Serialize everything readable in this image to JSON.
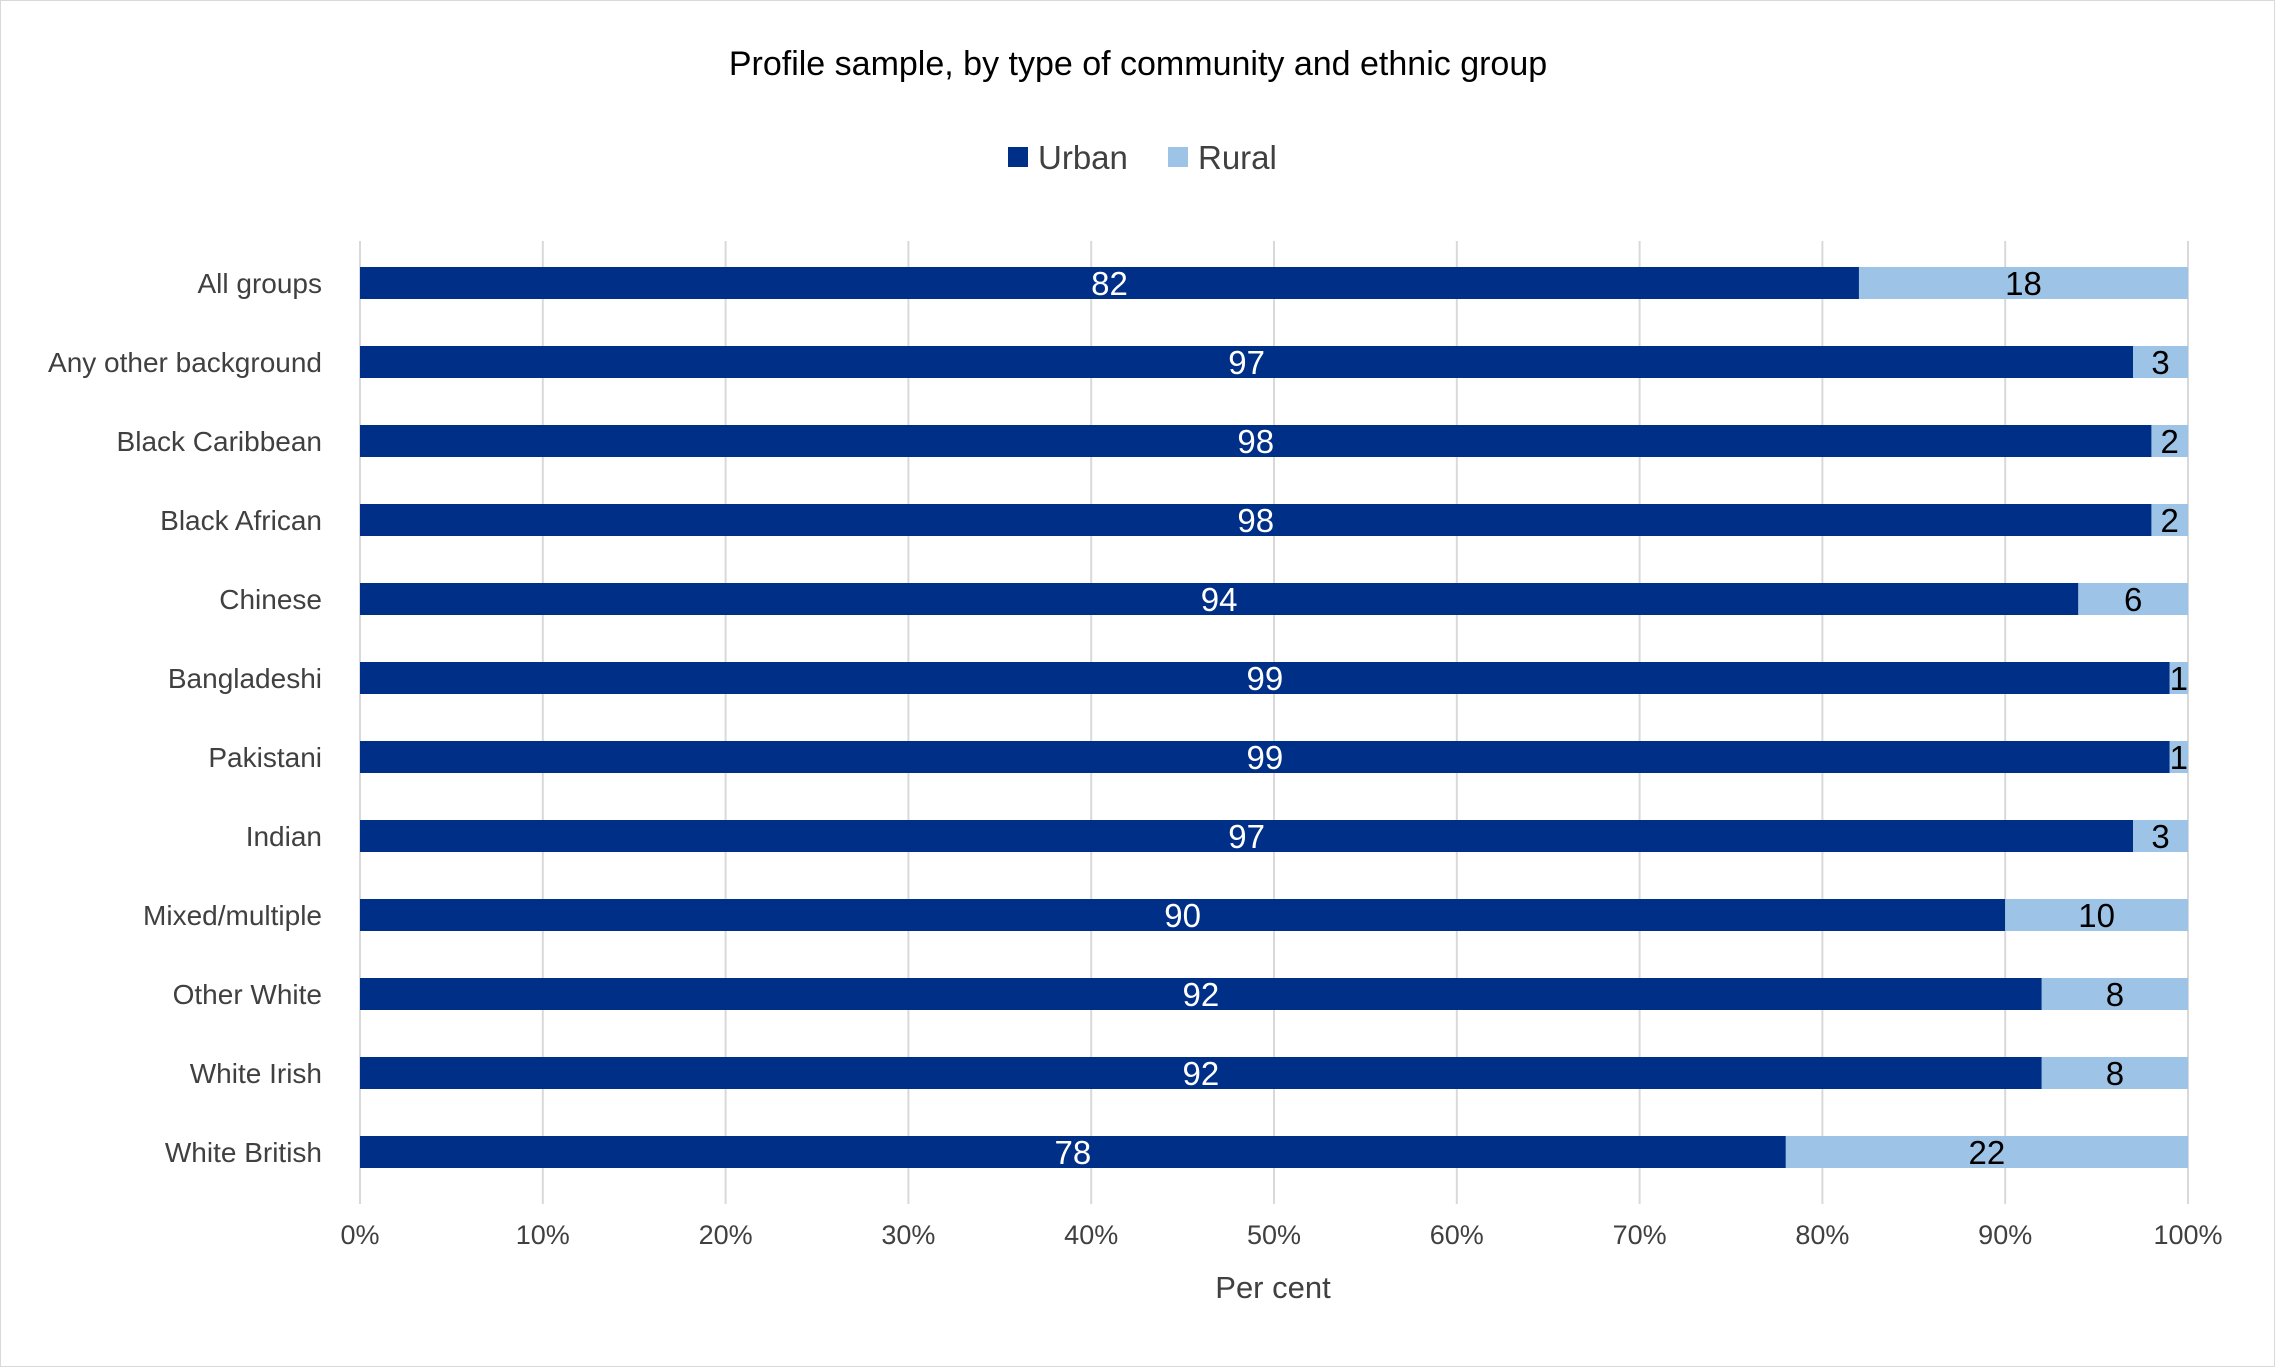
{
  "chart_data": {
    "type": "bar",
    "orientation": "horizontal",
    "stacked": "percent",
    "title": "Profile sample, by type of community and ethnic group",
    "xlabel": "Per cent",
    "ylabel": "",
    "xlim": [
      0,
      100
    ],
    "x_ticks": [
      "0%",
      "10%",
      "20%",
      "30%",
      "40%",
      "50%",
      "60%",
      "70%",
      "80%",
      "90%",
      "100%"
    ],
    "grid": true,
    "legend_position": "top",
    "categories": [
      "All groups",
      "Any other background",
      "Black Caribbean",
      "Black African",
      "Chinese",
      "Bangladeshi",
      "Pakistani",
      "Indian",
      "Mixed/multiple",
      "Other White",
      "White Irish",
      "White British"
    ],
    "series": [
      {
        "name": "Urban",
        "color": "#002f87",
        "label_color": "#ffffff",
        "values": [
          82,
          97,
          98,
          98,
          94,
          99,
          99,
          97,
          90,
          92,
          92,
          78
        ]
      },
      {
        "name": "Rural",
        "color": "#9dc3e6",
        "label_color": "#000000",
        "values": [
          18,
          3,
          2,
          2,
          6,
          1,
          1,
          3,
          10,
          8,
          8,
          22
        ]
      }
    ]
  }
}
